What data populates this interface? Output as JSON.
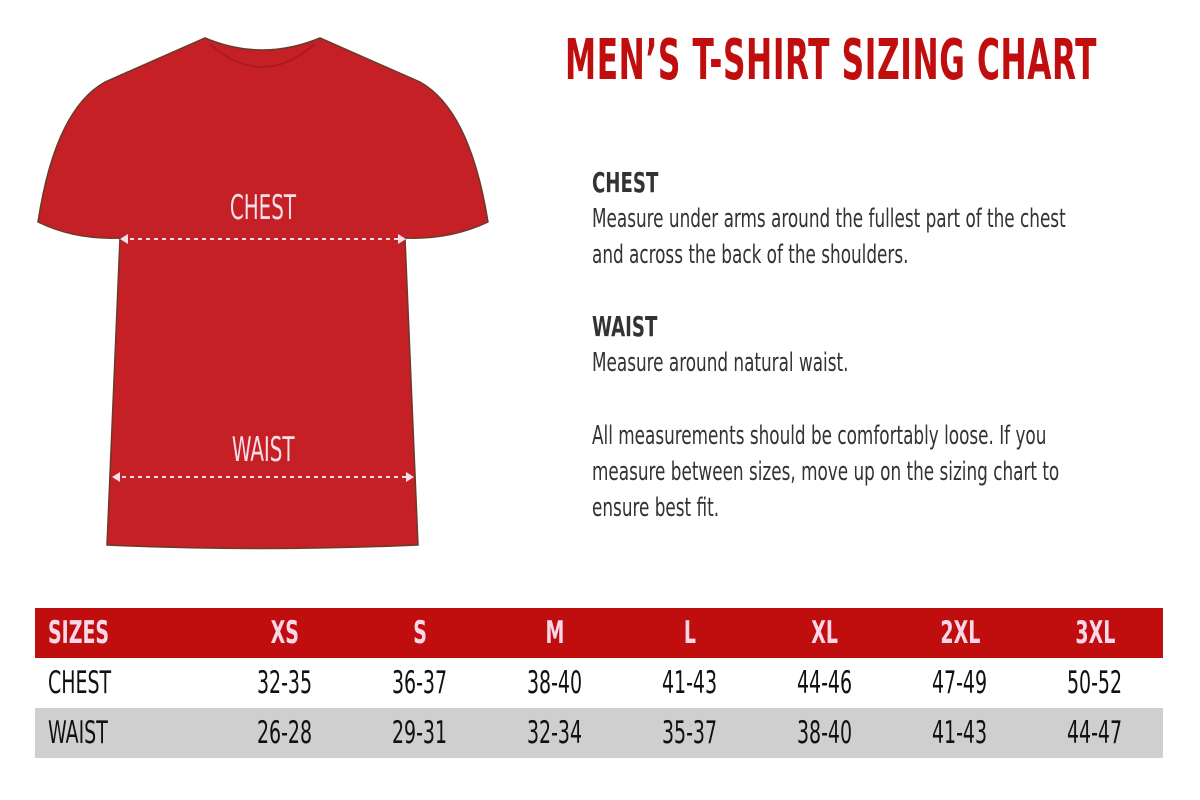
{
  "title": "MEN’S T-SHIRT SIZING CHART",
  "shirt": {
    "color": "#c42026",
    "chest_label": "CHEST",
    "waist_label": "WAIST"
  },
  "chest": {
    "heading": "CHEST",
    "text": "Measure under arms around the fullest part of the chest and across the back of the shoulders."
  },
  "waist": {
    "heading": "WAIST",
    "text": "Measure around natural waist."
  },
  "note": "All measurements should be comfortably loose. If you measure between sizes, move up on the sizing chart to ensure best fit.",
  "table": {
    "header": [
      "SIZES",
      "XS",
      "S",
      "M",
      "L",
      "XL",
      "2XL",
      "3XL"
    ],
    "rows": [
      [
        "CHEST",
        "32-35",
        "36-37",
        "38-40",
        "41-43",
        "44-46",
        "47-49",
        "50-52"
      ],
      [
        "WAIST",
        "26-28",
        "29-31",
        "32-34",
        "35-37",
        "38-40",
        "41-43",
        "44-47"
      ]
    ]
  },
  "colors": {
    "accent": "#c00d0d",
    "alt_row": "#cfcfcf"
  }
}
